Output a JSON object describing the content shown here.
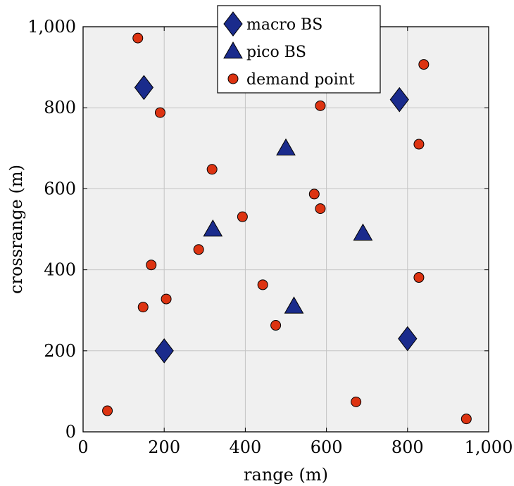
{
  "chart_data": {
    "type": "scatter",
    "xlabel": "range (m)",
    "ylabel": "crossrange (m)",
    "xlim": [
      0,
      1000
    ],
    "ylim": [
      0,
      1000
    ],
    "x_ticks": [
      0,
      200,
      400,
      600,
      800,
      1000
    ],
    "y_ticks": [
      0,
      200,
      400,
      600,
      800,
      1000
    ],
    "x_tick_labels": [
      "0",
      "200",
      "400",
      "600",
      "800",
      "1,000"
    ],
    "y_tick_labels": [
      "0",
      "200",
      "400",
      "600",
      "800",
      "1,000"
    ],
    "grid": true,
    "legend_position": "top-center",
    "series": [
      {
        "name": "macro BS",
        "marker": "diamond",
        "color": "#1a2b8c",
        "points": [
          [
            150,
            850
          ],
          [
            780,
            820
          ],
          [
            200,
            200
          ],
          [
            800,
            230
          ]
        ]
      },
      {
        "name": "pico BS",
        "marker": "triangle",
        "color": "#1a2b8c",
        "points": [
          [
            500,
            700
          ],
          [
            320,
            500
          ],
          [
            690,
            490
          ],
          [
            520,
            310
          ]
        ]
      },
      {
        "name": "demand point",
        "marker": "circle",
        "color": "#dd3311",
        "points": [
          [
            135,
            972
          ],
          [
            190,
            788
          ],
          [
            585,
            805
          ],
          [
            840,
            907
          ],
          [
            828,
            710
          ],
          [
            318,
            648
          ],
          [
            570,
            587
          ],
          [
            585,
            551
          ],
          [
            393,
            531
          ],
          [
            285,
            450
          ],
          [
            168,
            412
          ],
          [
            443,
            363
          ],
          [
            828,
            381
          ],
          [
            148,
            308
          ],
          [
            205,
            328
          ],
          [
            475,
            263
          ],
          [
            60,
            52
          ],
          [
            673,
            74
          ],
          [
            945,
            32
          ]
        ]
      }
    ]
  }
}
